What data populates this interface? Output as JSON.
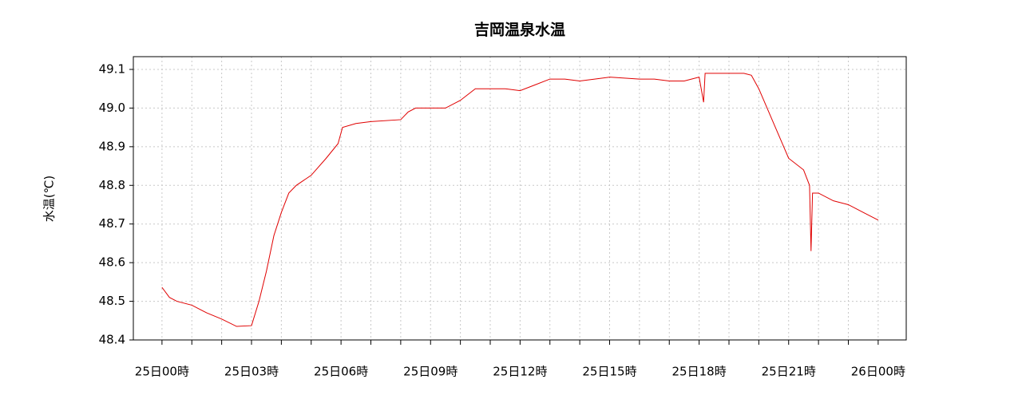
{
  "chart_data": {
    "type": "line",
    "title": "吉岡温泉水温",
    "y_label": "水温(℃)",
    "x": [
      0,
      0.25,
      0.5,
      1,
      1.5,
      2,
      2.5,
      3,
      3.25,
      3.5,
      3.75,
      4,
      4.25,
      4.5,
      5,
      5.5,
      5.9,
      6.05,
      6.5,
      7,
      8,
      8.25,
      8.5,
      9,
      9.5,
      10,
      10.5,
      11,
      11.5,
      12,
      12.5,
      13,
      13.5,
      14,
      14.5,
      15,
      16,
      16.5,
      17,
      17.5,
      18,
      18.15,
      18.2,
      18.25,
      19,
      19.5,
      19.75,
      20,
      20.5,
      21,
      21.5,
      21.7,
      21.75,
      21.8,
      22,
      22.5,
      23,
      23.5,
      24
    ],
    "series": [
      {
        "name": "水温",
        "color": "#e00000",
        "values": [
          48.536,
          48.51,
          48.5,
          48.49,
          48.47,
          48.454,
          48.435,
          48.437,
          48.5,
          48.578,
          48.67,
          48.73,
          48.78,
          48.8,
          48.826,
          48.87,
          48.908,
          48.95,
          48.96,
          48.965,
          48.97,
          48.99,
          49.0,
          49.0,
          49.0,
          49.02,
          49.05,
          49.05,
          49.05,
          49.045,
          49.06,
          49.075,
          49.075,
          49.07,
          49.075,
          49.08,
          49.075,
          49.075,
          49.07,
          49.07,
          49.08,
          49.015,
          49.09,
          49.09,
          49.09,
          49.09,
          49.085,
          49.05,
          48.96,
          48.87,
          48.84,
          48.8,
          48.63,
          48.78,
          48.78,
          48.76,
          48.75,
          48.73,
          48.71
        ]
      }
    ],
    "xlim": [
      -0.96,
      24.94
    ],
    "ylim": [
      48.4,
      49.133
    ],
    "xticks": [
      {
        "value": 0,
        "label": "25日00時"
      },
      {
        "value": 3,
        "label": "25日03時"
      },
      {
        "value": 6,
        "label": "25日06時"
      },
      {
        "value": 9,
        "label": "25日09時"
      },
      {
        "value": 12,
        "label": "25日12時"
      },
      {
        "value": 15,
        "label": "25日15時"
      },
      {
        "value": 18,
        "label": "25日18時"
      },
      {
        "value": 21,
        "label": "25日21時"
      },
      {
        "value": 24,
        "label": "26日00時"
      }
    ],
    "xminor_ticks": [
      1,
      2,
      4,
      5,
      7,
      8,
      10,
      11,
      13,
      14,
      16,
      17,
      19,
      20,
      22,
      23
    ],
    "yticks": [
      48.4,
      48.5,
      48.6,
      48.7,
      48.8,
      48.9,
      {
        "value": 49,
        "label": "49.0"
      },
      49.1
    ],
    "grid": true
  }
}
